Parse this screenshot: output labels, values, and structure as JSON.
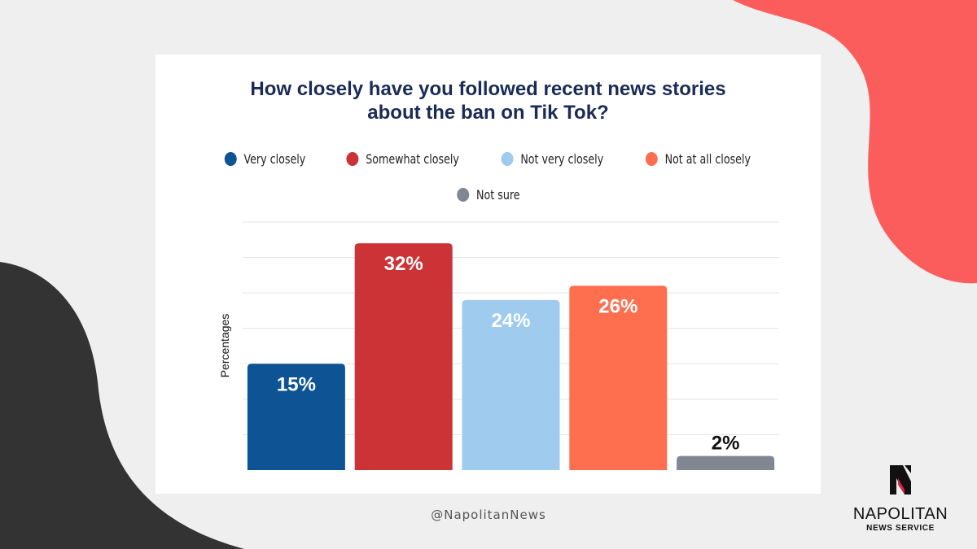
{
  "colors": {
    "background": "#efefef",
    "card": "#ffffff",
    "title": "#1a2b56",
    "accent_red": "#fb5d5d",
    "accent_dark": "#333333"
  },
  "footer": {
    "handle": "@NapolitanNews"
  },
  "brand": {
    "name": "NAPOLITAN",
    "subtitle": "NEWS SERVICE",
    "logo_icon": "napolitan-n-logo"
  },
  "chart_data": {
    "type": "bar",
    "title": "How closely have you followed recent news stories about the ban on Tik Tok?",
    "title_lines": [
      "How closely have you followed recent news stories",
      "about the ban on Tik Tok?"
    ],
    "xlabel": "",
    "ylabel": "Percentages",
    "ylim": [
      0,
      35
    ],
    "grid": true,
    "legend_placement": "top",
    "categories": [
      "Very closely",
      "Somewhat closely",
      "Not very closely",
      "Not at all closely",
      "Not sure"
    ],
    "values": [
      15,
      32,
      24,
      26,
      2
    ],
    "value_labels": [
      "15%",
      "32%",
      "24%",
      "26%",
      "2%"
    ],
    "colors": [
      "#0e5494",
      "#cc3336",
      "#9ecbee",
      "#fd6f4f",
      "#818791"
    ],
    "label_colors": [
      "#ffffff",
      "#ffffff",
      "#ffffff",
      "#ffffff",
      "#111111"
    ]
  }
}
